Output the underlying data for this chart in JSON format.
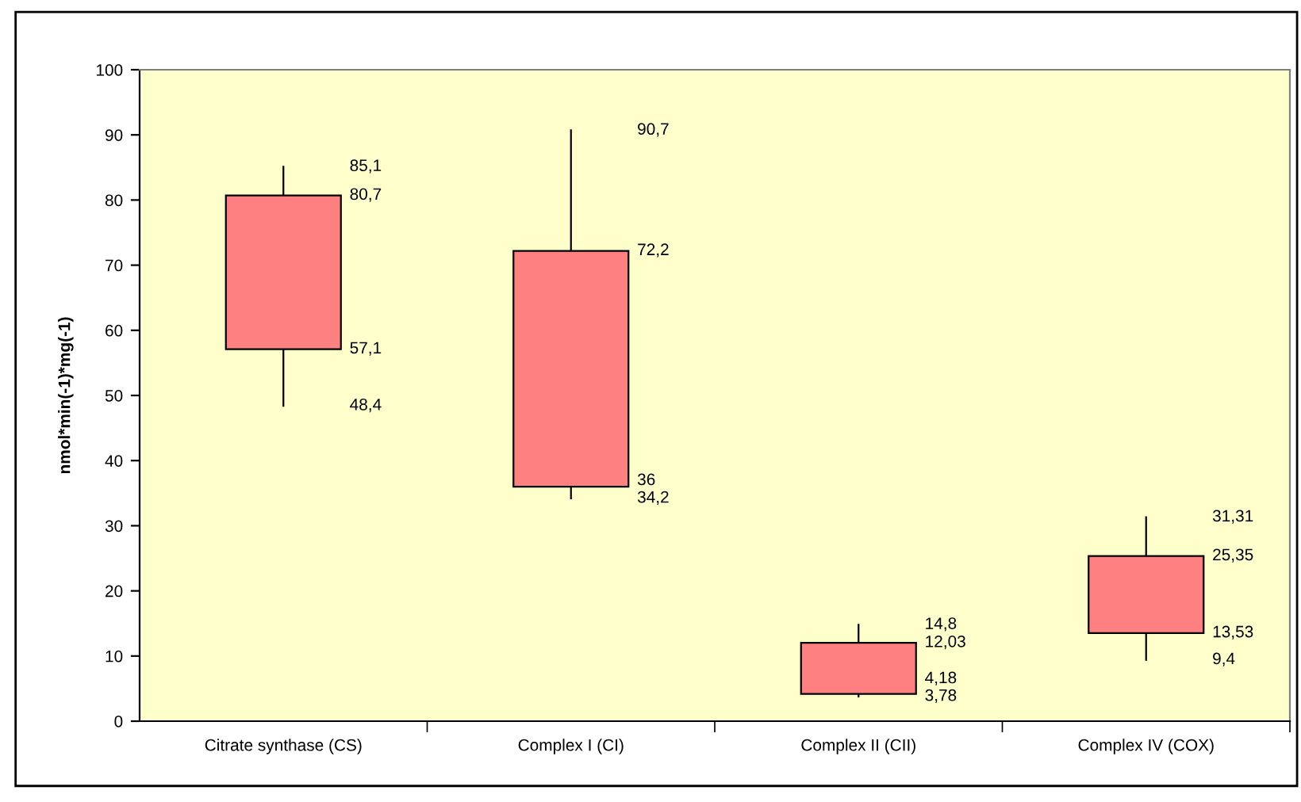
{
  "chart_data": {
    "type": "candlestick",
    "ylabel": "nmol*min(-1)*mg(-1)",
    "categories": [
      "Citrate synthase (CS)",
      "Complex I (CI)",
      "Complex II (CII)",
      "Complex IV (COX)"
    ],
    "ohlc": [
      [
        80.7,
        85.1,
        48.4,
        57.1
      ],
      [
        72.2,
        90.7,
        34.2,
        36
      ],
      [
        12.03,
        14.8,
        3.78,
        4.18
      ],
      [
        25.35,
        31.31,
        9.4,
        13.53
      ]
    ],
    "value_labels": [
      [
        "80,7",
        "85,1",
        "48,4",
        "57,1"
      ],
      [
        "72,2",
        "90,7",
        "34,2",
        "36"
      ],
      [
        "12,03",
        "14,8",
        "3,78",
        "4,18"
      ],
      [
        "25,35",
        "31,31",
        "9,4",
        "13,53"
      ]
    ],
    "color": "#ff8080",
    "ylim": [
      0,
      100
    ],
    "yticks": [
      0,
      10,
      20,
      30,
      40,
      50,
      60,
      70,
      80,
      90,
      100
    ],
    "grid": false,
    "legend": false
  }
}
